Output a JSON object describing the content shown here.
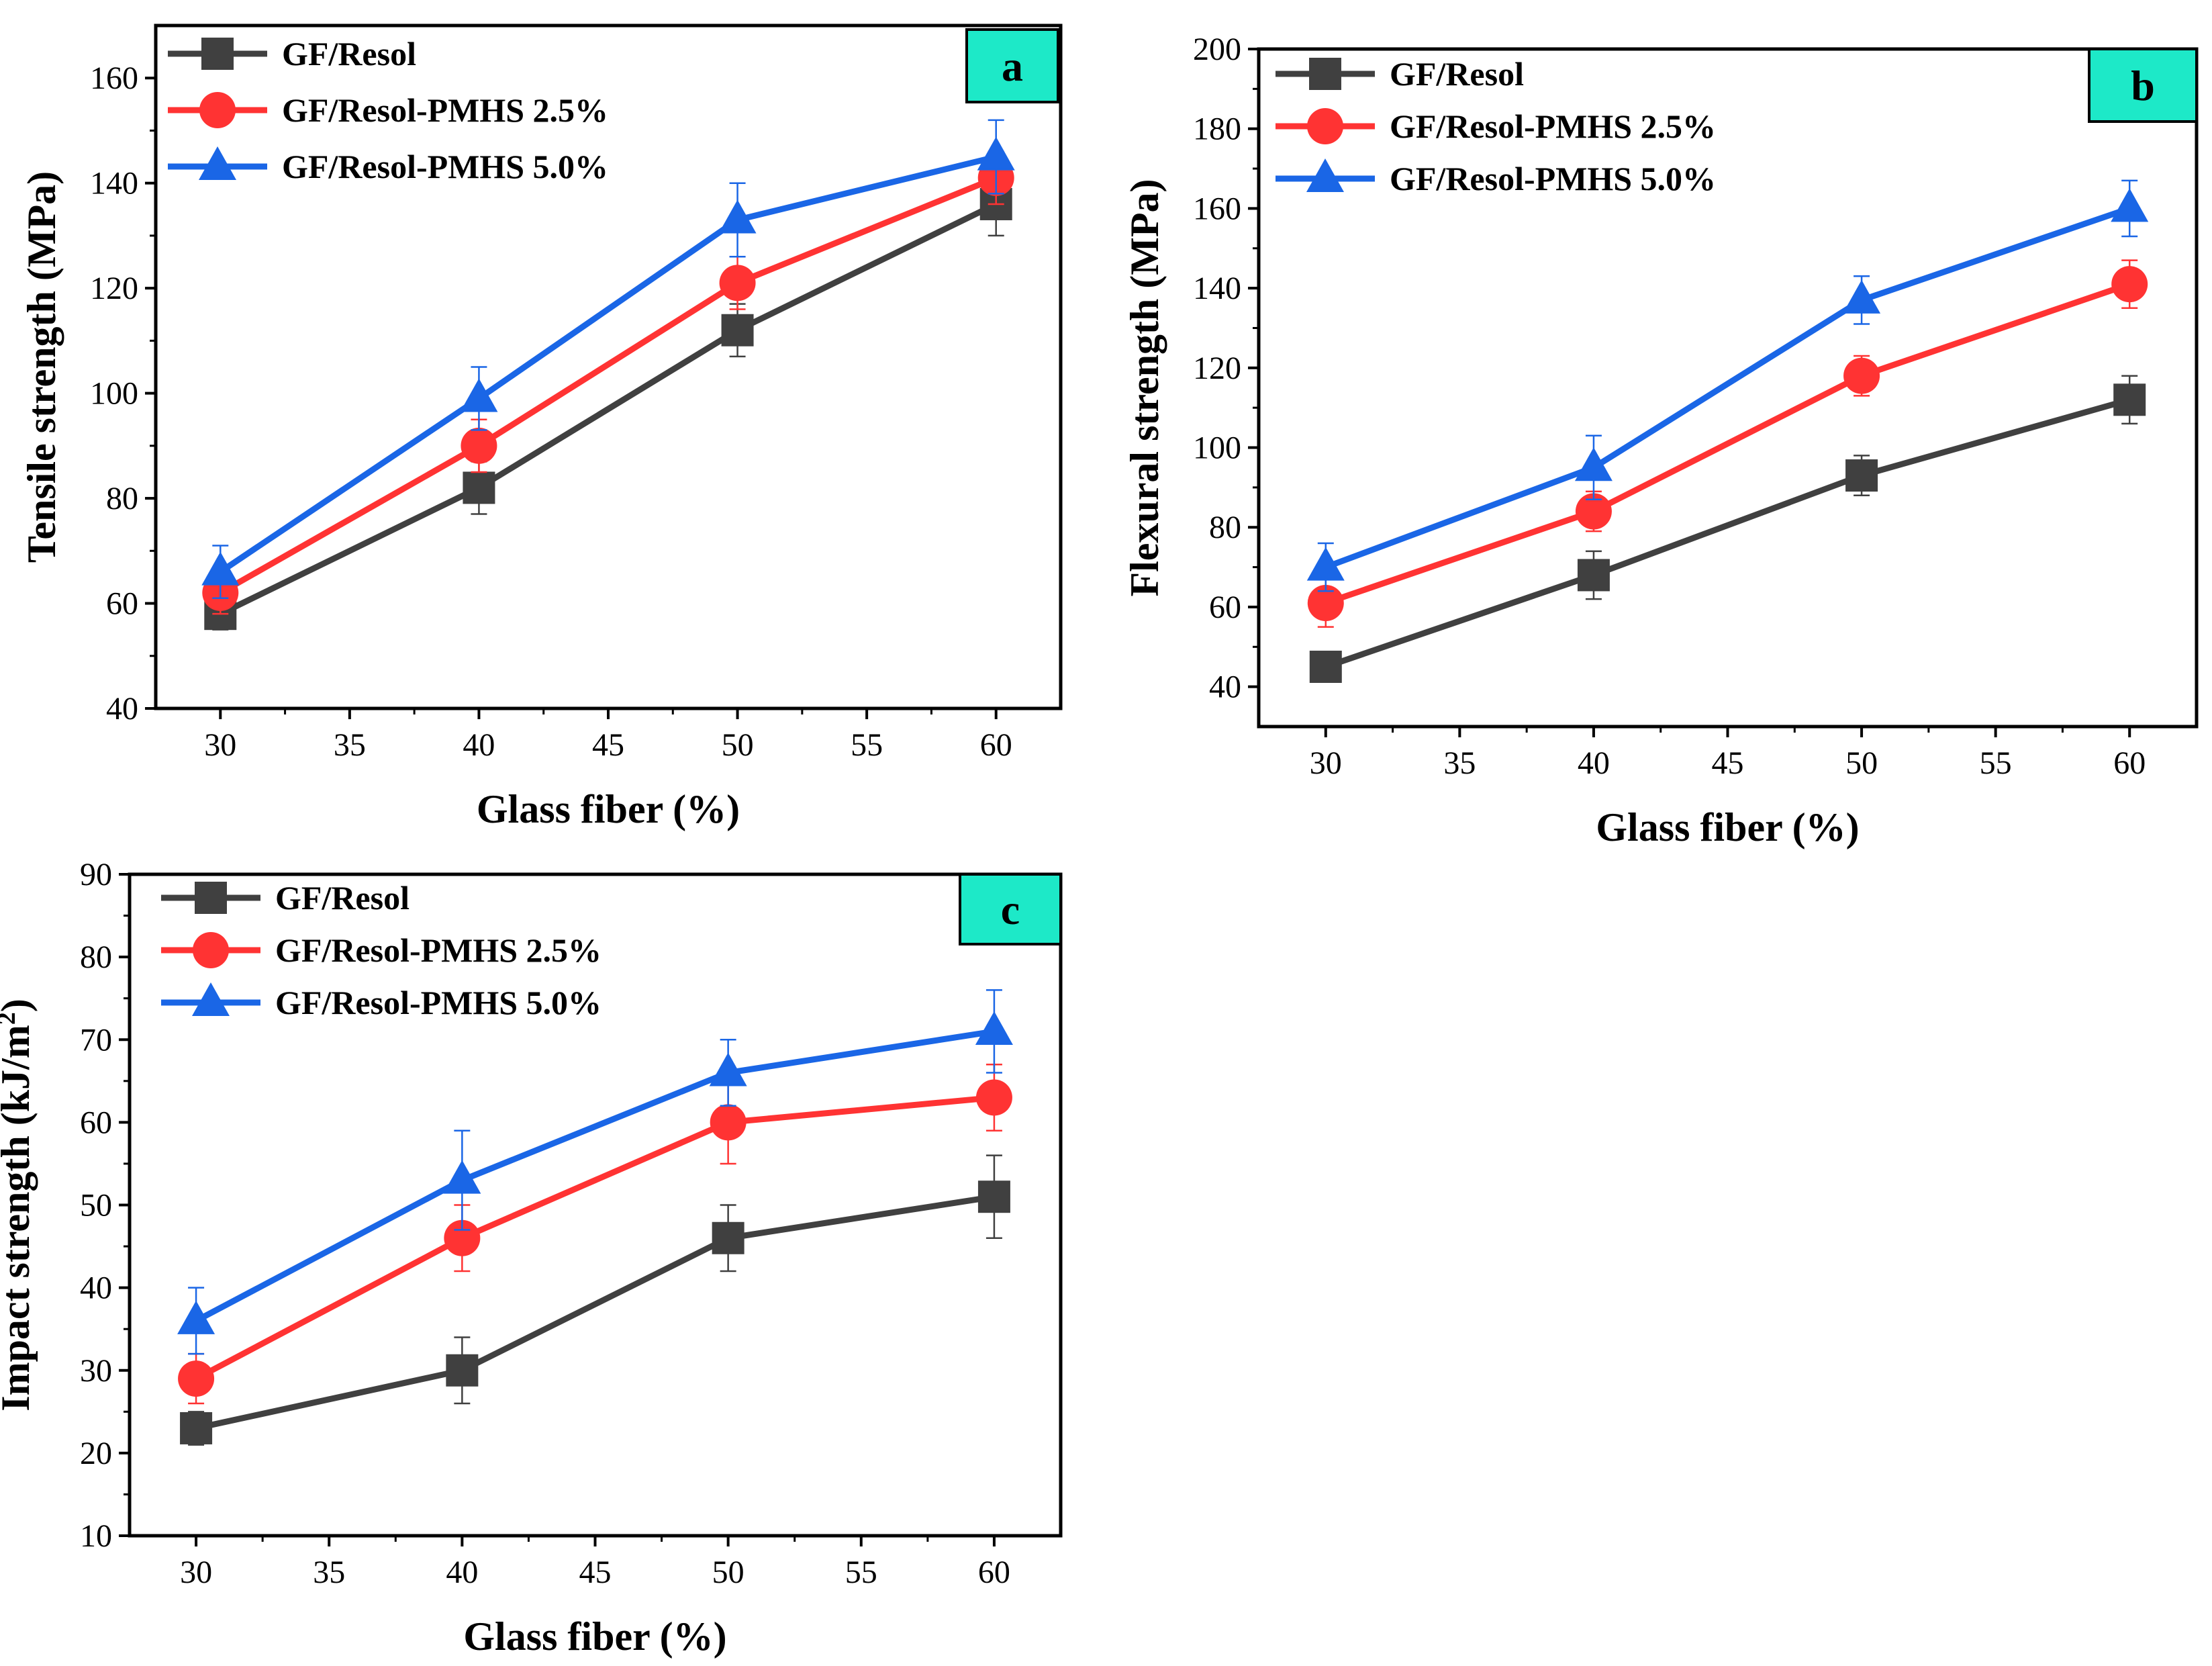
{
  "chart_data": [
    {
      "panel": "a",
      "type": "line",
      "xlabel": "Glass fiber (%)",
      "ylabel": "Tensile strength (MPa)",
      "xlim": [
        27.5,
        62.5
      ],
      "ylim": [
        40,
        170
      ],
      "xticks": [
        30,
        35,
        40,
        45,
        50,
        55,
        60
      ],
      "yticks": [
        40,
        60,
        80,
        100,
        120,
        140,
        160
      ],
      "x": [
        30,
        40,
        50,
        60
      ],
      "legend_position": "top-left",
      "series": [
        {
          "name": "GF/Resol",
          "color": "#404040",
          "marker": "square",
          "values": [
            58,
            82,
            112,
            136
          ],
          "errors": [
            3,
            5,
            5,
            6
          ]
        },
        {
          "name": "GF/Resol-PMHS 2.5%",
          "color": "#ff3333",
          "marker": "circle",
          "values": [
            62,
            90,
            121,
            141
          ],
          "errors": [
            4,
            5,
            5,
            5
          ]
        },
        {
          "name": "GF/Resol-PMHS 5.0%",
          "color": "#1a66e6",
          "marker": "triangle",
          "values": [
            66,
            99,
            133,
            145
          ],
          "errors": [
            5,
            6,
            7,
            7
          ]
        }
      ]
    },
    {
      "panel": "b",
      "type": "line",
      "xlabel": "Glass fiber (%)",
      "ylabel": "Flexural strength (MPa)",
      "xlim": [
        27.5,
        62.5
      ],
      "ylim": [
        30,
        200
      ],
      "xticks": [
        30,
        35,
        40,
        45,
        50,
        55,
        60
      ],
      "yticks": [
        40,
        60,
        80,
        100,
        120,
        140,
        160,
        180,
        200
      ],
      "x": [
        30,
        40,
        50,
        60
      ],
      "legend_position": "top-left",
      "series": [
        {
          "name": "GF/Resol",
          "color": "#404040",
          "marker": "square",
          "values": [
            45,
            68,
            93,
            112
          ],
          "errors": [
            2,
            6,
            5,
            6
          ]
        },
        {
          "name": "GF/Resol-PMHS 2.5%",
          "color": "#ff3333",
          "marker": "circle",
          "values": [
            61,
            84,
            118,
            141
          ],
          "errors": [
            6,
            5,
            5,
            6
          ]
        },
        {
          "name": "GF/Resol-PMHS 5.0%",
          "color": "#1a66e6",
          "marker": "triangle",
          "values": [
            70,
            95,
            137,
            160
          ],
          "errors": [
            6,
            8,
            6,
            7
          ]
        }
      ]
    },
    {
      "panel": "c",
      "type": "line",
      "xlabel": "Glass fiber (%)",
      "ylabel": "Impact strength (kJ/m",
      "ylabel_sup": "2",
      "ylabel_end": ")",
      "xlim": [
        27.5,
        62.5
      ],
      "ylim": [
        10,
        90
      ],
      "xticks": [
        30,
        35,
        40,
        45,
        50,
        55,
        60
      ],
      "yticks": [
        10,
        20,
        30,
        40,
        50,
        60,
        70,
        80,
        90
      ],
      "x": [
        30,
        40,
        50,
        60
      ],
      "legend_position": "top-left",
      "series": [
        {
          "name": "GF/Resol",
          "color": "#404040",
          "marker": "square",
          "values": [
            23,
            30,
            46,
            51
          ],
          "errors": [
            2,
            4,
            4,
            5
          ]
        },
        {
          "name": "GF/Resol-PMHS 2.5%",
          "color": "#ff3333",
          "marker": "circle",
          "values": [
            29,
            46,
            60,
            63
          ],
          "errors": [
            3,
            4,
            5,
            4
          ]
        },
        {
          "name": "GF/Resol-PMHS 5.0%",
          "color": "#1a66e6",
          "marker": "triangle",
          "values": [
            36,
            53,
            66,
            71
          ],
          "errors": [
            4,
            6,
            4,
            5
          ]
        }
      ]
    }
  ],
  "badge_color": "#1de9c8"
}
